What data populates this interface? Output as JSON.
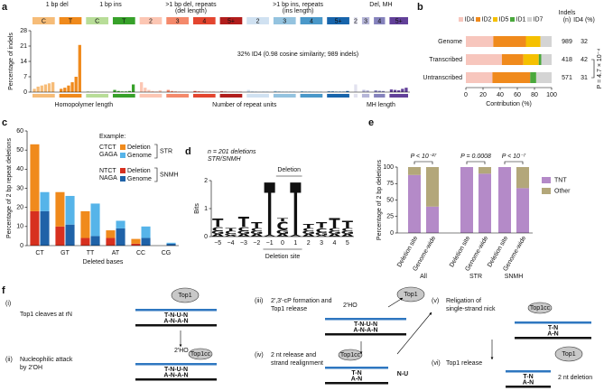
{
  "chart_data": [
    {
      "panel": "a",
      "type": "bar",
      "ylabel": "Percentage of indels",
      "ylim": [
        0,
        28
      ],
      "yticks": [
        0,
        7,
        14,
        21,
        28
      ],
      "annotation": "32% ID4 (0.98 cosine similarity; 989 indels)",
      "xlabels": [
        "Homopolymer length",
        "Number of repeat units",
        "MH length"
      ],
      "sections": [
        {
          "label": [
            "1 bp del"
          ],
          "groups": [
            {
              "label": "C",
              "color": "#f6bc78",
              "values": [
                1.5,
                2.5,
                3,
                3.5,
                4,
                4.5
              ]
            },
            {
              "label": "T",
              "color": "#f08a1c",
              "values": [
                1.5,
                2,
                3,
                4.5,
                7,
                21.5
              ]
            }
          ]
        },
        {
          "label": [
            "1 bp ins"
          ],
          "groups": [
            {
              "label": "C",
              "color": "#b8dd98",
              "values": [
                0.3,
                0.2,
                0.2,
                0.1,
                0.1,
                0.1
              ]
            },
            {
              "label": "T",
              "color": "#37a12a",
              "values": [
                1,
                0.5,
                0.3,
                0.3,
                0.5,
                3.5
              ]
            }
          ]
        },
        {
          "label": [
            ">1 bp del, repeats",
            "(del length)"
          ],
          "groups": [
            {
              "label": "2",
              "color": "#fcc6b3",
              "values": [
                4.5,
                2,
                1,
                0.5,
                0.3,
                0.8
              ]
            },
            {
              "label": "3",
              "color": "#f4896b",
              "values": [
                1,
                0.5,
                0.3,
                0.2,
                0.1,
                0.1
              ]
            },
            {
              "label": "4",
              "color": "#e3452f",
              "values": [
                0.5,
                0.3,
                0.2,
                0.1,
                0.1,
                0.1
              ]
            },
            {
              "label": "5+",
              "color": "#b11d1c",
              "values": [
                0.3,
                0.2,
                0.1,
                0.1,
                0.1,
                0.1
              ]
            }
          ]
        },
        {
          "label": [
            ">1 bp ins, repeats",
            "(ins length)"
          ],
          "groups": [
            {
              "label": "2",
              "color": "#d0e1f1",
              "values": [
                1,
                0.5,
                0.3,
                0.2,
                0.3,
                0.3
              ]
            },
            {
              "label": "3",
              "color": "#94c3df",
              "values": [
                0.5,
                0.3,
                0.2,
                0.2,
                0.2,
                0.2
              ]
            },
            {
              "label": "4",
              "color": "#4a98c9",
              "values": [
                0.3,
                0.2,
                0.2,
                0.1,
                0.1,
                0.1
              ]
            },
            {
              "label": "5+",
              "color": "#1764ab",
              "values": [
                0.3,
                0.3,
                0.2,
                0.2,
                0.2,
                0.5
              ]
            }
          ]
        },
        {
          "label": [
            "Del, MH"
          ],
          "groups": [
            {
              "label": "2",
              "color": "#e2e2ef",
              "values": [
                3.5
              ]
            },
            {
              "label": "3",
              "color": "#b6b6d8",
              "values": [
                1,
                0.8
              ]
            },
            {
              "label": "4",
              "color": "#8582bc",
              "values": [
                0.8,
                0.6,
                0.5
              ]
            },
            {
              "label": "5+",
              "color": "#624099",
              "values": [
                1.2,
                1,
                0.8,
                1.5,
                2
              ]
            }
          ]
        }
      ]
    },
    {
      "panel": "b",
      "type": "stacked_barh",
      "categories": [
        "Genome",
        "Transcribed",
        "Untranscribed"
      ],
      "series": [
        {
          "name": "ID4",
          "color": "#f7c6bd",
          "values": [
            32,
            42,
            31
          ]
        },
        {
          "name": "ID2",
          "color": "#f08a1c",
          "values": [
            38,
            25,
            44
          ]
        },
        {
          "name": "ID5",
          "color": "#f5c000",
          "values": [
            17,
            18,
            0
          ]
        },
        {
          "name": "ID1",
          "color": "#4aa83c",
          "values": [
            0,
            3,
            7
          ]
        },
        {
          "name": "ID7",
          "color": "#d4d4d4",
          "values": [
            13,
            12,
            18
          ]
        }
      ],
      "xlim": [
        0,
        100
      ],
      "xticks": [
        0,
        20,
        40,
        60,
        80,
        100
      ],
      "xlabel": "Contribution (%)",
      "columns": [
        {
          "header": [
            "Indels",
            "(n)"
          ],
          "values": [
            989,
            418,
            571
          ]
        },
        {
          "header": [
            "ID4 (%)"
          ],
          "values": [
            32,
            42,
            31
          ]
        }
      ],
      "annotation": "P = 4.7 × 10⁻⁴"
    },
    {
      "panel": "c",
      "type": "stacked_bar_paired",
      "categories": [
        "CT",
        "GT",
        "TT",
        "AT",
        "CC",
        "CG"
      ],
      "ylabel": "Percentage of 2 bp repeat deletions",
      "xlabel": "Deleted bases",
      "ylim": [
        0,
        60
      ],
      "yticks": [
        0,
        10,
        20,
        30,
        40,
        50,
        60
      ],
      "legend_title": "Example:",
      "examples": [
        [
          "CTCT",
          "GAGA"
        ],
        [
          "NTCT",
          "NAGA"
        ]
      ],
      "series": [
        {
          "name": "Deletion",
          "group": "STR",
          "color": "#f08a1c",
          "values": [
            35,
            18,
            14,
            4,
            2.5,
            0
          ]
        },
        {
          "name": "Genome",
          "group": "STR",
          "color": "#56b4e9",
          "values": [
            10,
            15,
            17,
            4,
            6,
            0.5
          ]
        },
        {
          "name": "Deletion",
          "group": "SNMH",
          "color": "#d7301f",
          "values": [
            18,
            10,
            4,
            4,
            1,
            0
          ]
        },
        {
          "name": "Genome",
          "group": "SNMH",
          "color": "#1f62a8",
          "values": [
            18,
            11,
            5,
            9,
            4,
            1
          ]
        }
      ]
    },
    {
      "panel": "d",
      "type": "logo",
      "title": [
        "n = 201 deletions",
        "STR/SNMH"
      ],
      "ylabel": "Bits",
      "ylim": [
        0,
        2
      ],
      "yticks": [
        0,
        1,
        2
      ],
      "categories": [
        "−5",
        "−4",
        "−3",
        "−2",
        "−1",
        "0",
        "1",
        "2",
        "3",
        "4",
        "5"
      ],
      "top_label": "Deletion",
      "bottom_label": "Deletion site",
      "series": [
        {
          "name": "A",
          "color": "#2e9e3e",
          "values": [
            0.1,
            0.05,
            0.1,
            0.1,
            0.05,
            0.1,
            0.05,
            0.1,
            0.05,
            0.1,
            0.1
          ]
        },
        {
          "name": "G",
          "color": "#444444",
          "values": [
            0.1,
            0.05,
            0.1,
            0.1,
            0,
            0.15,
            0,
            0.1,
            0.1,
            0.1,
            0.1
          ]
        },
        {
          "name": "C",
          "color": "#2b6cb0",
          "values": [
            0.15,
            0.1,
            0.15,
            0.1,
            0,
            0.3,
            0,
            0.1,
            0.15,
            0.1,
            0.1
          ]
        },
        {
          "name": "T",
          "color": "#f39c12",
          "values": [
            0.3,
            0.1,
            0.35,
            0.2,
            1.9,
            0.1,
            1.9,
            0.15,
            0.2,
            0.35,
            0.25
          ]
        }
      ]
    },
    {
      "panel": "e",
      "type": "stacked_bar_grouped",
      "ylabel": "Percentage of 2 bp deletions",
      "ylim": [
        0,
        100
      ],
      "yticks": [
        0,
        25,
        50,
        75,
        100
      ],
      "categories": [
        "Deletion site",
        "Genome-wide",
        "Deletion site",
        "Genome-wide",
        "Deletion site",
        "Genome-wide"
      ],
      "groups": [
        {
          "label": "All",
          "p": "P < 10⁻²⁷"
        },
        {
          "label": "STR",
          "p": "P = 0.0008"
        },
        {
          "label": "SNMH",
          "p": "P < 10⁻⁷"
        }
      ],
      "series": [
        {
          "name": "TNT",
          "color": "#b48ac8",
          "values": [
            88,
            40,
            100,
            90,
            100,
            68
          ]
        },
        {
          "name": "Other",
          "color": "#b3a77a",
          "values": [
            12,
            60,
            0,
            10,
            0,
            32
          ]
        }
      ]
    }
  ],
  "diagram": {
    "panel": "f",
    "steps": [
      {
        "id": "(i)",
        "lines": [
          "Top1 cleaves at rN"
        ]
      },
      {
        "id": "(ii)",
        "lines": [
          "Nucleophilic attack",
          "by 2′OH"
        ]
      },
      {
        "id": "(iii)",
        "lines": [
          "2′,3′-cP formation and",
          "Top1 release"
        ]
      },
      {
        "id": "(iv)",
        "lines": [
          "2 nt release and",
          "strand realignment"
        ]
      },
      {
        "id": "(v)",
        "lines": [
          "Religation of",
          "single-strand nick"
        ]
      },
      {
        "id": "(vi)",
        "lines": [
          "Top1 release"
        ]
      }
    ],
    "enzyme": "Top1",
    "complex": "Top1cc",
    "hydroxyl": "2′HO",
    "top_strand": "T-N-U-N",
    "bottom_strand": "A-N-A-N",
    "short_top": "T-N",
    "short_bottom": "A-N",
    "released": "N-U",
    "result": "2 nt deletion"
  }
}
